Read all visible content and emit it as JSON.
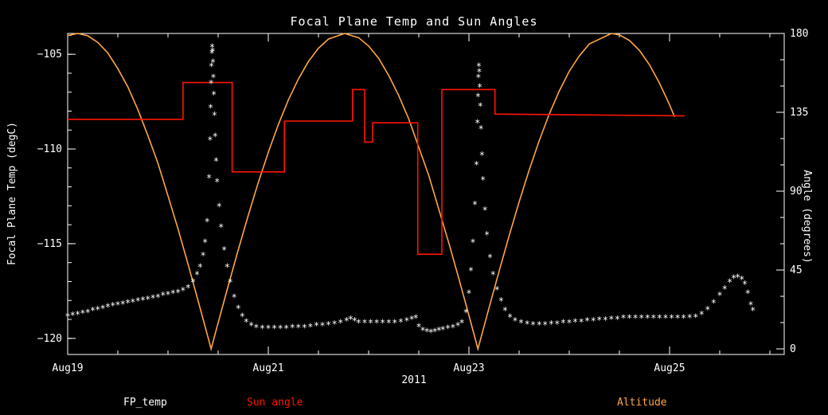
{
  "title": "Focal Plane Temp and Sun Angles",
  "x_title": "2011",
  "y_left_title": "Focal Plane Temp (degC)",
  "y_right_title": "Angle (degrees)",
  "legend": {
    "fp_temp": "FP_temp",
    "sun_angle": "Sun angle",
    "altitude": "Altitude"
  },
  "colors": {
    "background": "#000000",
    "axis": "#ffffff",
    "fp_temp": "#ffffff",
    "sun_angle": "#ff1500",
    "altitude": "#ffa643"
  },
  "chart_data": {
    "type": "line",
    "title": "Focal Plane Temp and Sun Angles",
    "xlabel": "2011",
    "grid": false,
    "legend_position": "bottom",
    "x_axis": {
      "unit": "days since Aug 19, 2011",
      "min": 0,
      "max": 7.143,
      "minor_step": 0.5,
      "major_ticks": [
        {
          "value": 0,
          "label": "Aug19"
        },
        {
          "value": 2,
          "label": "Aug21"
        },
        {
          "value": 4,
          "label": "Aug23"
        },
        {
          "value": 6,
          "label": "Aug25"
        }
      ]
    },
    "y_axis_left": {
      "label": "Focal Plane Temp (degC)",
      "min": -120.85,
      "max": -103.9,
      "minor_step": 1,
      "major_ticks": [
        {
          "value": -105,
          "label": "−105"
        },
        {
          "value": -110,
          "label": "−110"
        },
        {
          "value": -115,
          "label": "−115"
        },
        {
          "value": -120,
          "label": "−120"
        }
      ]
    },
    "y_axis_right": {
      "label": "Angle (degrees)",
      "min": -3.18,
      "max": 180,
      "minor_step": 15,
      "major_ticks": [
        {
          "value": 0,
          "label": "0"
        },
        {
          "value": 45,
          "label": "45"
        },
        {
          "value": 90,
          "label": "90"
        },
        {
          "value": 135,
          "label": "135"
        },
        {
          "value": 180,
          "label": "180"
        }
      ]
    },
    "series": [
      {
        "name": "Altitude",
        "axis": "right",
        "style": "line",
        "color": "#ffa643",
        "points": [
          [
            0,
            178.8
          ],
          [
            0.1,
            180
          ],
          [
            0.2,
            178.7
          ],
          [
            0.3,
            174.9
          ],
          [
            0.4,
            168.9
          ],
          [
            0.5,
            159.9
          ],
          [
            0.6,
            149.5
          ],
          [
            0.7,
            136.5
          ],
          [
            0.8,
            121.7
          ],
          [
            0.9,
            105.9
          ],
          [
            1.0,
            87.3
          ],
          [
            1.1,
            68.5
          ],
          [
            1.2,
            48.3
          ],
          [
            1.3,
            27.5
          ],
          [
            1.4,
            6.4
          ],
          [
            1.43,
            0
          ],
          [
            1.5,
            14.9
          ],
          [
            1.6,
            35.9
          ],
          [
            1.7,
            56.4
          ],
          [
            1.8,
            76.2
          ],
          [
            1.9,
            94.9
          ],
          [
            2.0,
            112.2
          ],
          [
            2.1,
            128.0
          ],
          [
            2.2,
            142.1
          ],
          [
            2.3,
            154.0
          ],
          [
            2.4,
            164.0
          ],
          [
            2.5,
            171.6
          ],
          [
            2.6,
            176.8
          ],
          [
            2.76,
            180
          ],
          [
            2.9,
            177.6
          ],
          [
            3.0,
            172.8
          ],
          [
            3.1,
            165.8
          ],
          [
            3.2,
            156.1
          ],
          [
            3.3,
            144.6
          ],
          [
            3.4,
            131.2
          ],
          [
            3.5,
            115.1
          ],
          [
            3.6,
            98.9
          ],
          [
            3.7,
            79.6
          ],
          [
            3.8,
            60.3
          ],
          [
            3.9,
            40.0
          ],
          [
            4.0,
            19.1
          ],
          [
            4.09,
            0
          ],
          [
            4.2,
            23.3
          ],
          [
            4.3,
            44.2
          ],
          [
            4.4,
            64.4
          ],
          [
            4.5,
            83.8
          ],
          [
            4.6,
            102.0
          ],
          [
            4.7,
            118.7
          ],
          [
            4.8,
            133.9
          ],
          [
            4.9,
            147.1
          ],
          [
            5.0,
            158.4
          ],
          [
            5.1,
            167.2
          ],
          [
            5.2,
            174.0
          ],
          [
            5.42,
            180
          ],
          [
            5.5,
            179.2
          ],
          [
            5.6,
            176.0
          ],
          [
            5.7,
            170.3
          ],
          [
            5.8,
            162.1
          ],
          [
            5.9,
            151.6
          ],
          [
            6.0,
            139.3
          ],
          [
            6.05,
            132.4
          ]
        ]
      },
      {
        "name": "Sun angle",
        "axis": "right",
        "style": "steps",
        "color": "#ff1500",
        "points": [
          [
            0,
            131
          ],
          [
            1.15,
            131
          ],
          [
            1.15,
            152
          ],
          [
            1.64,
            152
          ],
          [
            1.64,
            101
          ],
          [
            2.16,
            101
          ],
          [
            2.16,
            130
          ],
          [
            2.84,
            130
          ],
          [
            2.84,
            148
          ],
          [
            2.96,
            148
          ],
          [
            2.96,
            118
          ],
          [
            3.04,
            118
          ],
          [
            3.04,
            129
          ],
          [
            3.49,
            129
          ],
          [
            3.49,
            54
          ],
          [
            3.73,
            54
          ],
          [
            3.73,
            148
          ],
          [
            4.26,
            148
          ],
          [
            4.26,
            134
          ],
          [
            5.2,
            133.5
          ],
          [
            6.15,
            133
          ]
        ]
      },
      {
        "name": "FP_temp",
        "axis": "left",
        "style": "markers",
        "marker": "*",
        "color": "#ffffff",
        "points": [
          [
            0,
            -118.8
          ],
          [
            0.05,
            -118.75
          ],
          [
            0.1,
            -118.7
          ],
          [
            0.15,
            -118.65
          ],
          [
            0.2,
            -118.6
          ],
          [
            0.25,
            -118.5
          ],
          [
            0.3,
            -118.45
          ],
          [
            0.35,
            -118.4
          ],
          [
            0.4,
            -118.3
          ],
          [
            0.45,
            -118.25
          ],
          [
            0.5,
            -118.2
          ],
          [
            0.55,
            -118.15
          ],
          [
            0.6,
            -118.1
          ],
          [
            0.65,
            -118.05
          ],
          [
            0.7,
            -118
          ],
          [
            0.75,
            -117.95
          ],
          [
            0.8,
            -117.9
          ],
          [
            0.85,
            -117.85
          ],
          [
            0.9,
            -117.8
          ],
          [
            0.95,
            -117.7
          ],
          [
            1,
            -117.65
          ],
          [
            1.05,
            -117.6
          ],
          [
            1.1,
            -117.55
          ],
          [
            1.15,
            -117.45
          ],
          [
            1.2,
            -117.3
          ],
          [
            1.25,
            -117
          ],
          [
            1.29,
            -116.6
          ],
          [
            1.32,
            -116.2
          ],
          [
            1.35,
            -115.6
          ],
          [
            1.37,
            -114.9
          ],
          [
            1.39,
            -113.8
          ],
          [
            1.41,
            -111.5
          ],
          [
            1.42,
            -109.5
          ],
          [
            1.425,
            -107.8
          ],
          [
            1.43,
            -106.5
          ],
          [
            1.433,
            -105.6
          ],
          [
            1.437,
            -104.9
          ],
          [
            1.44,
            -104.6
          ],
          [
            1.444,
            -104.8
          ],
          [
            1.448,
            -105.4
          ],
          [
            1.452,
            -106.2
          ],
          [
            1.457,
            -107.1
          ],
          [
            1.463,
            -108.2
          ],
          [
            1.47,
            -109.3
          ],
          [
            1.48,
            -110.6
          ],
          [
            1.49,
            -111.7
          ],
          [
            1.51,
            -113
          ],
          [
            1.53,
            -114.1
          ],
          [
            1.56,
            -115.3
          ],
          [
            1.59,
            -116.2
          ],
          [
            1.62,
            -117
          ],
          [
            1.66,
            -117.8
          ],
          [
            1.7,
            -118.4
          ],
          [
            1.74,
            -118.8
          ],
          [
            1.78,
            -119.1
          ],
          [
            1.83,
            -119.3
          ],
          [
            1.88,
            -119.4
          ],
          [
            1.94,
            -119.45
          ],
          [
            2,
            -119.45
          ],
          [
            2.06,
            -119.45
          ],
          [
            2.12,
            -119.45
          ],
          [
            2.18,
            -119.45
          ],
          [
            2.24,
            -119.4
          ],
          [
            2.3,
            -119.4
          ],
          [
            2.36,
            -119.4
          ],
          [
            2.42,
            -119.35
          ],
          [
            2.48,
            -119.3
          ],
          [
            2.54,
            -119.3
          ],
          [
            2.6,
            -119.25
          ],
          [
            2.66,
            -119.2
          ],
          [
            2.72,
            -119.15
          ],
          [
            2.78,
            -119.05
          ],
          [
            2.82,
            -118.95
          ],
          [
            2.86,
            -119.05
          ],
          [
            2.9,
            -119.15
          ],
          [
            2.96,
            -119.15
          ],
          [
            3.02,
            -119.15
          ],
          [
            3.08,
            -119.15
          ],
          [
            3.14,
            -119.15
          ],
          [
            3.2,
            -119.15
          ],
          [
            3.26,
            -119.15
          ],
          [
            3.32,
            -119.1
          ],
          [
            3.38,
            -119.05
          ],
          [
            3.43,
            -118.95
          ],
          [
            3.47,
            -118.9
          ],
          [
            3.5,
            -119.35
          ],
          [
            3.54,
            -119.55
          ],
          [
            3.58,
            -119.6
          ],
          [
            3.62,
            -119.65
          ],
          [
            3.66,
            -119.6
          ],
          [
            3.7,
            -119.55
          ],
          [
            3.74,
            -119.5
          ],
          [
            3.79,
            -119.45
          ],
          [
            3.84,
            -119.4
          ],
          [
            3.89,
            -119.3
          ],
          [
            3.93,
            -119.15
          ],
          [
            3.97,
            -118.6
          ],
          [
            4,
            -117.6
          ],
          [
            4.02,
            -116.4
          ],
          [
            4.04,
            -114.9
          ],
          [
            4.06,
            -112.9
          ],
          [
            4.075,
            -110.8
          ],
          [
            4.085,
            -108.6
          ],
          [
            4.09,
            -107.2
          ],
          [
            4.094,
            -106.2
          ],
          [
            4.098,
            -105.6
          ],
          [
            4.103,
            -105.9
          ],
          [
            4.108,
            -106.7
          ],
          [
            4.113,
            -107.7
          ],
          [
            4.12,
            -108.9
          ],
          [
            4.13,
            -110.3
          ],
          [
            4.14,
            -111.6
          ],
          [
            4.16,
            -113.2
          ],
          [
            4.18,
            -114.5
          ],
          [
            4.21,
            -115.7
          ],
          [
            4.24,
            -116.6
          ],
          [
            4.28,
            -117.4
          ],
          [
            4.32,
            -118
          ],
          [
            4.36,
            -118.5
          ],
          [
            4.41,
            -118.85
          ],
          [
            4.46,
            -119.05
          ],
          [
            4.52,
            -119.15
          ],
          [
            4.58,
            -119.2
          ],
          [
            4.64,
            -119.25
          ],
          [
            4.7,
            -119.25
          ],
          [
            4.76,
            -119.25
          ],
          [
            4.82,
            -119.2
          ],
          [
            4.88,
            -119.2
          ],
          [
            4.94,
            -119.15
          ],
          [
            5,
            -119.15
          ],
          [
            5.06,
            -119.1
          ],
          [
            5.12,
            -119.1
          ],
          [
            5.18,
            -119.05
          ],
          [
            5.24,
            -119.05
          ],
          [
            5.3,
            -119
          ],
          [
            5.36,
            -119
          ],
          [
            5.42,
            -118.95
          ],
          [
            5.48,
            -118.95
          ],
          [
            5.54,
            -118.9
          ],
          [
            5.6,
            -118.9
          ],
          [
            5.66,
            -118.9
          ],
          [
            5.72,
            -118.9
          ],
          [
            5.78,
            -118.9
          ],
          [
            5.84,
            -118.9
          ],
          [
            5.9,
            -118.9
          ],
          [
            5.96,
            -118.9
          ],
          [
            6.02,
            -118.9
          ],
          [
            6.08,
            -118.9
          ],
          [
            6.14,
            -118.9
          ],
          [
            6.2,
            -118.88
          ],
          [
            6.26,
            -118.85
          ],
          [
            6.32,
            -118.7
          ],
          [
            6.38,
            -118.45
          ],
          [
            6.44,
            -118.1
          ],
          [
            6.5,
            -117.7
          ],
          [
            6.55,
            -117.35
          ],
          [
            6.6,
            -117
          ],
          [
            6.64,
            -116.8
          ],
          [
            6.68,
            -116.75
          ],
          [
            6.72,
            -116.85
          ],
          [
            6.75,
            -117.1
          ],
          [
            6.78,
            -117.6
          ],
          [
            6.81,
            -118.2
          ],
          [
            6.83,
            -118.5
          ]
        ]
      }
    ]
  }
}
